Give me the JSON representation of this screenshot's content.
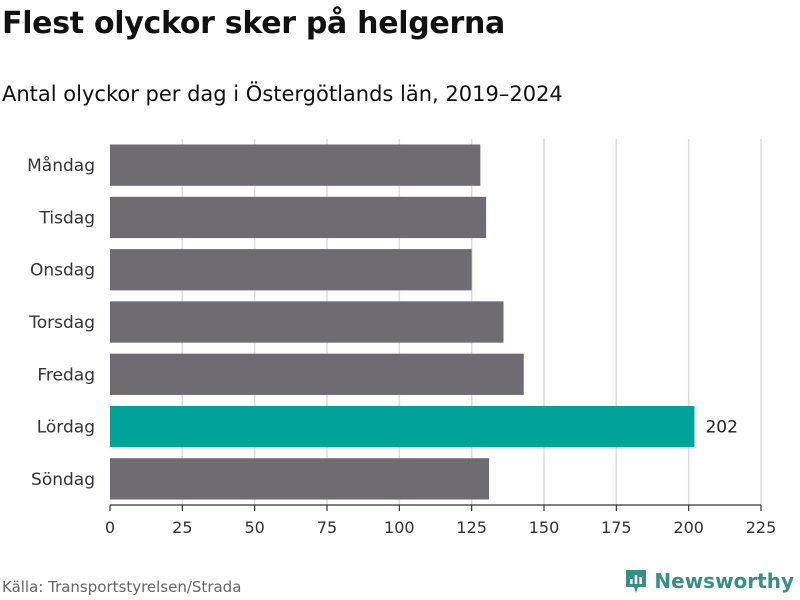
{
  "title": "Flest olyckor sker på helgerna",
  "subtitle": "Antal olyckor per dag i Östergötlands län, 2019–2024",
  "source": "Källa: Transportstyrelsen/Strada",
  "brand": "Newsworthy",
  "colors": {
    "bar": "#6e6c72",
    "highlight": "#00a29a",
    "grid": "#dcdcdc",
    "brand": "#3a8f85"
  },
  "chart_data": {
    "type": "bar",
    "orientation": "horizontal",
    "categories": [
      "Måndag",
      "Tisdag",
      "Onsdag",
      "Torsdag",
      "Fredag",
      "Lördag",
      "Söndag"
    ],
    "values": [
      128,
      130,
      125,
      136,
      143,
      202,
      131
    ],
    "highlight_category": "Lördag",
    "data_labels": [
      {
        "category": "Lördag",
        "text": "202"
      }
    ],
    "xlim": [
      0,
      225
    ],
    "xticks": [
      0,
      25,
      50,
      75,
      100,
      125,
      150,
      175,
      200,
      225
    ],
    "grid": true
  }
}
